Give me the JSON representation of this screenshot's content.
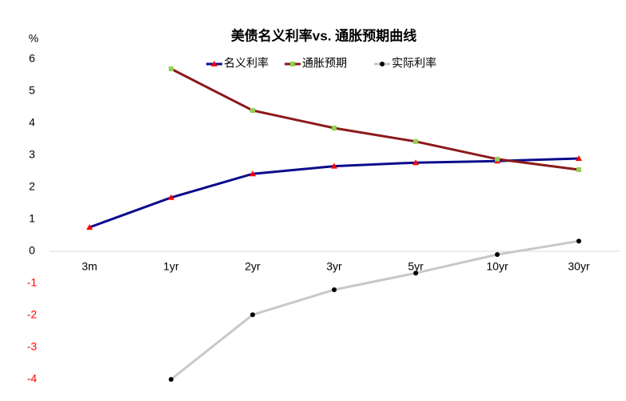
{
  "chart_data": {
    "type": "line",
    "title": "美债名义利率vs. 通胀预期曲线",
    "y_label": "%",
    "categories": [
      "3m",
      "1yr",
      "2yr",
      "3yr",
      "5yr",
      "10yr",
      "30yr"
    ],
    "series": [
      {
        "name": "名义利率",
        "color": "#0b0b8c",
        "marker": "triangle",
        "marker_color": "#ff0000",
        "values": [
          0.75,
          1.68,
          2.42,
          2.66,
          2.77,
          2.82,
          2.9
        ]
      },
      {
        "name": "通胀预期",
        "color": "#8b1a1a",
        "marker": "square",
        "marker_color": "#92d050",
        "values": [
          null,
          5.7,
          4.4,
          3.85,
          3.43,
          2.88,
          2.55
        ]
      },
      {
        "name": "实际利率",
        "color": "#c8c8c8",
        "marker": "circle",
        "marker_color": "#000000",
        "values": [
          null,
          -4.0,
          -1.98,
          -1.2,
          -0.68,
          -0.1,
          0.32
        ]
      }
    ],
    "ylim": [
      -4,
      6
    ],
    "yticks": [
      -4,
      -3,
      -2,
      -1,
      0,
      1,
      2,
      3,
      4,
      5,
      6
    ],
    "negative_tick_color": "#ff0000",
    "grid": false
  }
}
